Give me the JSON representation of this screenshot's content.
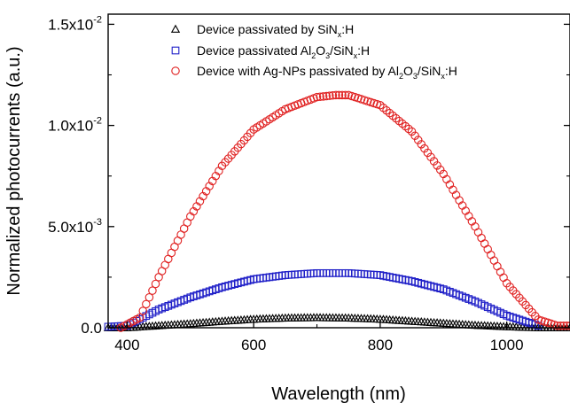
{
  "chart_data": {
    "type": "scatter",
    "title": "",
    "xlabel": "Wavelength (nm)",
    "ylabel": "Normalized photocurrents (a.u.)",
    "xlim": [
      370,
      1100
    ],
    "ylim": [
      0,
      0.0155
    ],
    "x_ticks": [
      400,
      600,
      800,
      1000
    ],
    "y_ticks": [
      {
        "value": 0.0,
        "mantissa": "0.0",
        "exp": ""
      },
      {
        "value": 0.005,
        "mantissa": "5.0x10",
        "exp": "-3"
      },
      {
        "value": 0.01,
        "mantissa": "1.0x10",
        "exp": "-2"
      },
      {
        "value": 0.015,
        "mantissa": "1.5x10",
        "exp": "-2"
      }
    ],
    "grid": false,
    "legend_position": "top-center",
    "legend": [
      {
        "marker": "triangle",
        "color": "#000000",
        "parts": [
          [
            "Device passivated by SiN",
            ""
          ],
          [
            "x",
            "sub"
          ],
          [
            ":H",
            ""
          ]
        ]
      },
      {
        "marker": "square",
        "color": "#2020c8",
        "parts": [
          [
            "Device passivated Al",
            ""
          ],
          [
            "2",
            "sub"
          ],
          [
            "O",
            ""
          ],
          [
            "3",
            "sub"
          ],
          [
            "/SiN",
            ""
          ],
          [
            "x",
            "sub"
          ],
          [
            ":H",
            ""
          ]
        ]
      },
      {
        "marker": "circle",
        "color": "#e02020",
        "parts": [
          [
            "Device with Ag-NPs passivated by Al",
            ""
          ],
          [
            "2",
            "sub"
          ],
          [
            "O",
            ""
          ],
          [
            "3",
            "sub"
          ],
          [
            "/SiN",
            ""
          ],
          [
            "x",
            "sub"
          ],
          [
            ":H",
            ""
          ]
        ]
      }
    ],
    "series": [
      {
        "marker": "triangle",
        "color": "#000000",
        "x": [
          370,
          400,
          450,
          500,
          550,
          600,
          650,
          700,
          750,
          800,
          850,
          900,
          950,
          1000,
          1050,
          1100
        ],
        "y": [
          0.0,
          0.0,
          0.0001,
          0.0002,
          0.00032,
          0.00042,
          0.00048,
          0.0005,
          0.00048,
          0.00042,
          0.00032,
          0.00022,
          0.00012,
          5e-05,
          0.0,
          0.0
        ]
      },
      {
        "marker": "square",
        "color": "#2020c8",
        "x": [
          370,
          400,
          450,
          500,
          550,
          600,
          650,
          700,
          750,
          800,
          850,
          900,
          950,
          1000,
          1050
        ],
        "y": [
          5e-05,
          0.0001,
          0.0009,
          0.0015,
          0.002,
          0.0024,
          0.0026,
          0.0027,
          0.0027,
          0.0026,
          0.0023,
          0.0019,
          0.0013,
          0.0006,
          0.0001
        ]
      },
      {
        "marker": "circle",
        "color": "#e02020",
        "x": [
          390,
          420,
          450,
          500,
          550,
          600,
          650,
          700,
          730,
          750,
          800,
          850,
          900,
          950,
          1000,
          1050,
          1080,
          1100
        ],
        "y": [
          0.0,
          0.0005,
          0.0025,
          0.0055,
          0.008,
          0.0098,
          0.0108,
          0.0114,
          0.0115,
          0.0115,
          0.011,
          0.0097,
          0.0076,
          0.005,
          0.0022,
          0.0004,
          0.0001,
          0.0001
        ]
      }
    ]
  }
}
